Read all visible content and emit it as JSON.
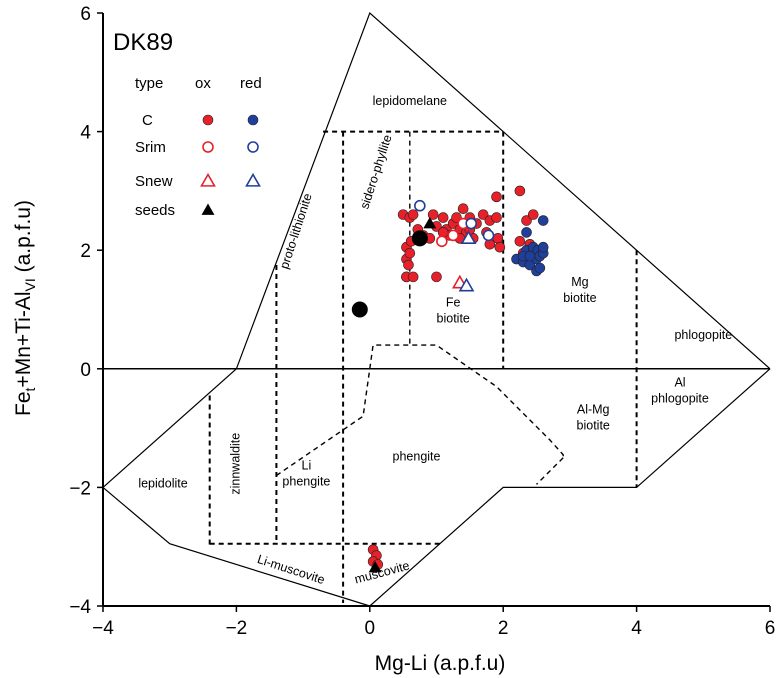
{
  "chart_data": {
    "type": "scatter",
    "title": "DK89",
    "xlabel": "Mg-Li (a.p.f.u)",
    "ylabel_parts": {
      "prefix": "Fe",
      "sub1": "t",
      "middle": "+Mn+Ti-Al",
      "sub2": "VI",
      "suffix": " (a.p.f.u)"
    },
    "xlim": [
      -4,
      6
    ],
    "ylim": [
      -4,
      6
    ],
    "xticks": [
      "−4",
      "−2",
      "0",
      "2",
      "4",
      "6"
    ],
    "yticks": [
      "−4",
      "−2",
      "0",
      "2",
      "4",
      "6"
    ],
    "colors": {
      "ox": "#e8202a",
      "red": "#1f3f9a",
      "seeds": "#000000",
      "lines": "#000000"
    },
    "legend": {
      "header": {
        "type": "type",
        "ox": "ox",
        "red": "red"
      },
      "rows": [
        {
          "label": "C",
          "marker": "filled-circle"
        },
        {
          "label": "Srim",
          "marker": "open-circle"
        },
        {
          "label": "Snew",
          "marker": "open-triangle"
        },
        {
          "label": "seeds",
          "marker": "filled-triangle"
        }
      ]
    },
    "regions": [
      {
        "id": "lepidomelane",
        "lines": [
          "lepidomelane"
        ],
        "x": 0.6,
        "y": 4.45,
        "rotate": 0
      },
      {
        "id": "sidero-phyllite",
        "lines": [
          "sidero-phyllite"
        ],
        "x": 0.15,
        "y": 3.3,
        "rotate": -72
      },
      {
        "id": "proto-lithionite",
        "lines": [
          "proto-lithionite"
        ],
        "x": -1.05,
        "y": 2.3,
        "rotate": -72
      },
      {
        "id": "fe-biotite",
        "lines": [
          "Fe",
          "biotite"
        ],
        "x": 1.25,
        "y": 1.05,
        "rotate": 0
      },
      {
        "id": "mg-biotite",
        "lines": [
          "Mg",
          "biotite"
        ],
        "x": 3.15,
        "y": 1.4,
        "rotate": 0
      },
      {
        "id": "phlogopite",
        "lines": [
          "phlogopite"
        ],
        "x": 5.0,
        "y": 0.5,
        "rotate": 0
      },
      {
        "id": "al-mg-biotite",
        "lines": [
          "Al-Mg",
          "biotite"
        ],
        "x": 3.35,
        "y": -0.75,
        "rotate": 0
      },
      {
        "id": "al-phlogopite",
        "lines": [
          "Al",
          "phlogopite"
        ],
        "x": 4.65,
        "y": -0.3,
        "rotate": 0
      },
      {
        "id": "zinnwaldite",
        "lines": [
          "zinnwaldite"
        ],
        "x": -1.95,
        "y": -1.6,
        "rotate": -90
      },
      {
        "id": "lepidolite",
        "lines": [
          "lepidolite"
        ],
        "x": -3.1,
        "y": -2.0,
        "rotate": 0
      },
      {
        "id": "li-phengite",
        "lines": [
          "Li",
          "phengite"
        ],
        "x": -0.95,
        "y": -1.7,
        "rotate": 0
      },
      {
        "id": "phengite",
        "lines": [
          "phengite"
        ],
        "x": 0.7,
        "y": -1.55,
        "rotate": 0
      },
      {
        "id": "li-muscovite",
        "lines": [
          "Li-muscovite"
        ],
        "x": -1.2,
        "y": -3.45,
        "rotate": 18
      },
      {
        "id": "muscovite",
        "lines": [
          "muscovite"
        ],
        "x": 0.2,
        "y": -3.5,
        "rotate": -15
      }
    ],
    "series": [
      {
        "key": "C_ox",
        "marker": "filled-circle",
        "color": "ox",
        "points": [
          [
            0.5,
            2.6
          ],
          [
            0.55,
            1.55
          ],
          [
            0.55,
            2.05
          ],
          [
            0.6,
            2.55
          ],
          [
            0.62,
            2.15
          ],
          [
            0.65,
            2.6
          ],
          [
            0.72,
            2.35
          ],
          [
            0.8,
            2.25
          ],
          [
            0.9,
            2.2
          ],
          [
            0.95,
            2.6
          ],
          [
            1.0,
            2.4
          ],
          [
            1.0,
            1.55
          ],
          [
            1.1,
            2.55
          ],
          [
            1.15,
            2.35
          ],
          [
            1.2,
            2.25
          ],
          [
            1.25,
            2.45
          ],
          [
            1.3,
            2.55
          ],
          [
            1.35,
            2.35
          ],
          [
            1.4,
            2.7
          ],
          [
            1.45,
            2.3
          ],
          [
            1.5,
            2.55
          ],
          [
            1.55,
            2.2
          ],
          [
            1.6,
            2.45
          ],
          [
            1.7,
            2.6
          ],
          [
            1.75,
            2.3
          ],
          [
            1.8,
            2.1
          ],
          [
            1.8,
            2.5
          ],
          [
            1.9,
            2.55
          ],
          [
            1.9,
            2.9
          ],
          [
            1.92,
            2.2
          ],
          [
            1.95,
            2.05
          ],
          [
            2.25,
            3.0
          ],
          [
            2.25,
            2.15
          ],
          [
            2.3,
            1.95
          ],
          [
            2.35,
            2.5
          ],
          [
            2.4,
            2.1
          ],
          [
            2.45,
            2.6
          ],
          [
            1.1,
            2.3
          ],
          [
            0.55,
            1.85
          ],
          [
            0.6,
            1.95
          ],
          [
            0.58,
            1.75
          ],
          [
            1.5,
            2.35
          ],
          [
            1.35,
            2.2
          ],
          [
            0.55,
            1.55
          ],
          [
            0.65,
            1.55
          ],
          [
            0.05,
            -3.05
          ],
          [
            0.1,
            -3.15
          ],
          [
            0.05,
            -3.25
          ],
          [
            0.12,
            -3.3
          ]
        ]
      },
      {
        "key": "C_red",
        "marker": "filled-circle",
        "color": "red",
        "points": [
          [
            2.2,
            1.85
          ],
          [
            2.3,
            1.8
          ],
          [
            2.35,
            2.0
          ],
          [
            2.35,
            2.3
          ],
          [
            2.4,
            1.75
          ],
          [
            2.45,
            1.95
          ],
          [
            2.45,
            2.05
          ],
          [
            2.5,
            1.85
          ],
          [
            2.5,
            1.65
          ],
          [
            2.52,
            2.0
          ],
          [
            2.55,
            1.9
          ],
          [
            2.6,
            1.95
          ],
          [
            2.6,
            2.05
          ],
          [
            2.6,
            2.5
          ],
          [
            2.55,
            1.7
          ],
          [
            2.3,
            1.9
          ],
          [
            2.4,
            1.9
          ]
        ]
      },
      {
        "key": "Srim_ox",
        "marker": "open-circle",
        "color": "ox",
        "points": [
          [
            1.08,
            2.15
          ],
          [
            1.25,
            2.25
          ],
          [
            1.4,
            2.45
          ]
        ]
      },
      {
        "key": "Srim_red",
        "marker": "open-circle",
        "color": "red",
        "points": [
          [
            0.75,
            2.75
          ],
          [
            1.52,
            2.45
          ],
          [
            1.78,
            2.25
          ]
        ]
      },
      {
        "key": "Snew_ox",
        "marker": "open-triangle",
        "color": "ox",
        "points": [
          [
            1.35,
            1.45
          ]
        ]
      },
      {
        "key": "Snew_red",
        "marker": "open-triangle",
        "color": "red",
        "points": [
          [
            1.48,
            2.2
          ],
          [
            1.45,
            1.4
          ]
        ]
      },
      {
        "key": "seeds_tri",
        "marker": "filled-triangle",
        "color": "seeds",
        "points": [
          [
            0.9,
            2.45
          ],
          [
            0.08,
            -3.35
          ]
        ]
      },
      {
        "key": "seeds_big",
        "marker": "big-filled-circle",
        "color": "seeds",
        "points": [
          [
            0.75,
            2.2
          ],
          [
            -0.15,
            1.0
          ]
        ]
      }
    ]
  }
}
